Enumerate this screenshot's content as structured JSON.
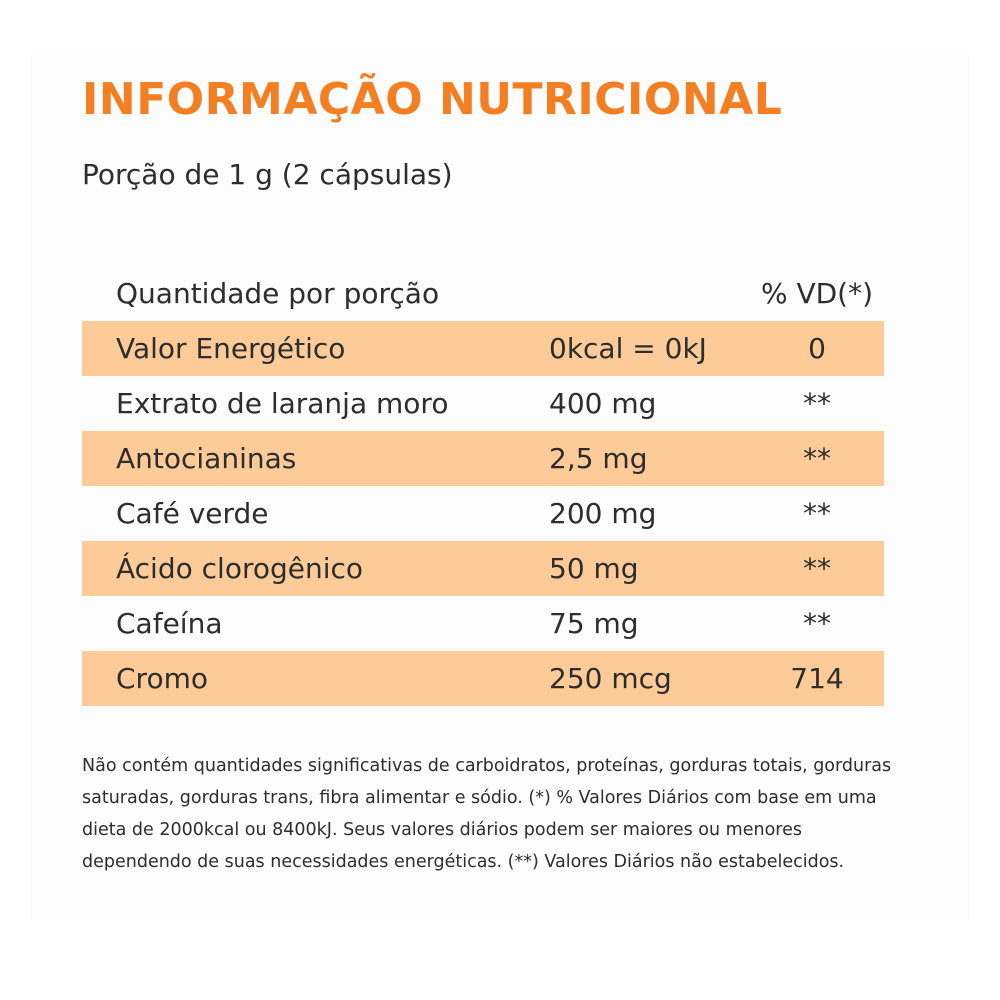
{
  "title": "INFORMAÇÃO NUTRICIONAL",
  "serving": "Porção de 1 g (2 cápsulas)",
  "colors": {
    "title": "#f37f22",
    "row_shade": "#fdcb98",
    "text": "#2d2d2d"
  },
  "table": {
    "header": {
      "quantity_label": "Quantidade por porção",
      "vd_label": "% VD(*)"
    },
    "rows": [
      {
        "name": "Valor Energético",
        "amount": "0kcal = 0kJ",
        "vd": "0",
        "shaded": true
      },
      {
        "name": "Extrato de laranja moro",
        "amount": "400 mg",
        "vd": "**",
        "shaded": false
      },
      {
        "name": "Antocianinas",
        "amount": "2,5 mg",
        "vd": "**",
        "shaded": true
      },
      {
        "name": "Café verde",
        "amount": "200 mg",
        "vd": "**",
        "shaded": false
      },
      {
        "name": "Ácido clorogênico",
        "amount": "50 mg",
        "vd": "**",
        "shaded": true
      },
      {
        "name": "Cafeína",
        "amount": "75 mg",
        "vd": "**",
        "shaded": false
      },
      {
        "name": "Cromo",
        "amount": "250 mcg",
        "vd": "714",
        "shaded": true
      }
    ]
  },
  "footnote": "Não contém quantidades significativas de carboidratos, proteínas, gorduras totais, gorduras saturadas, gorduras trans, fibra alimentar e sódio. (*) % Valores Diários com base em uma dieta de 2000kcal ou 8400kJ. Seus valores diários podem ser maiores ou menores dependendo de suas necessidades energéticas. (**) Valores Diários não estabelecidos."
}
